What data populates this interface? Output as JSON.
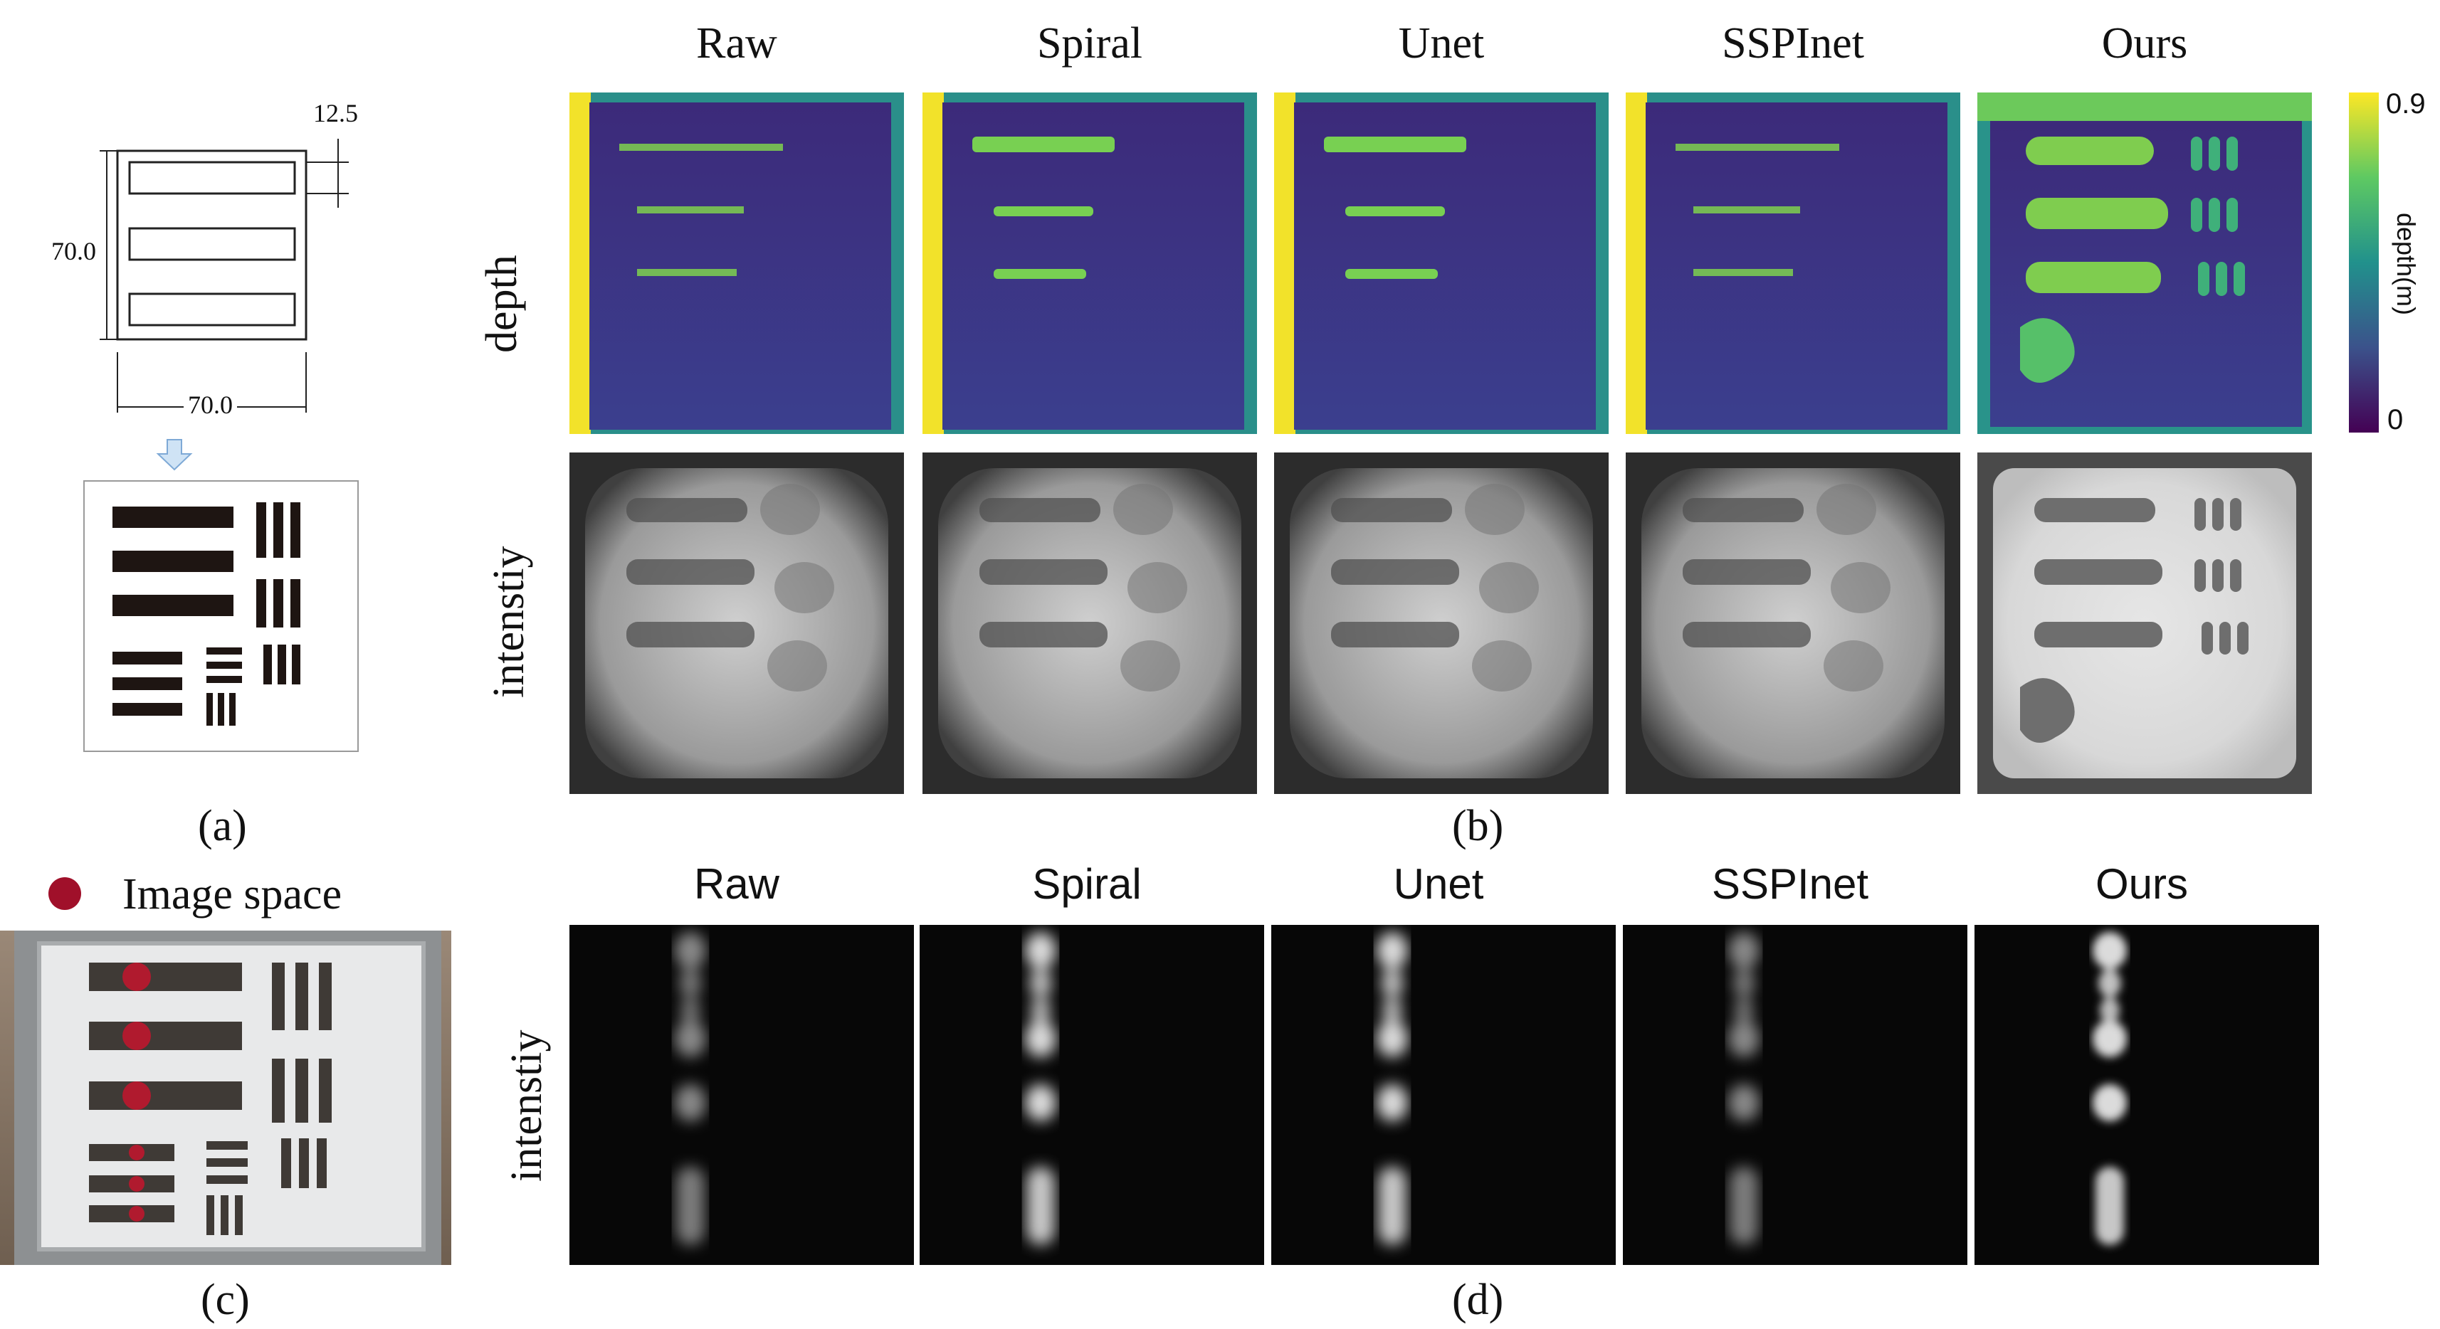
{
  "panel_a": {
    "dim_top": "12.5",
    "dim_left": "70.0",
    "dim_bottom": "70.0",
    "caption": "(a)"
  },
  "panel_b": {
    "method_headers": [
      "Raw",
      "Spiral",
      "Unet",
      "SSPInet",
      "Ours"
    ],
    "row_labels": [
      "depth",
      "intenstiy"
    ],
    "colorbar": {
      "max_label": "0.9",
      "min_label": "0",
      "title": "depth(m)",
      "colors": [
        "#440154",
        "#3b528b",
        "#21918c",
        "#5ec962",
        "#fde725"
      ]
    },
    "caption": "(b)"
  },
  "panel_c": {
    "legend_label": "Image space",
    "marker_color": "#a0102a",
    "caption": "(c)"
  },
  "panel_d": {
    "method_headers": [
      "Raw",
      "Spiral",
      "Unet",
      "SSPInet",
      "Ours"
    ],
    "row_label": "intenstiy",
    "caption": "(d)"
  }
}
